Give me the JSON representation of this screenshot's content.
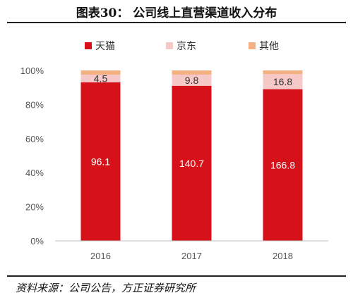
{
  "title": "图表30：   公司线上直营渠道收入分布",
  "source": "资料来源：公司公告，方正证券研究所",
  "chart_data": {
    "type": "bar",
    "stacked": true,
    "normalized": true,
    "categories": [
      "2016",
      "2017",
      "2018"
    ],
    "series": [
      {
        "name": "天猫",
        "color": "#d7111a",
        "values": [
          96.1,
          140.7,
          166.8
        ],
        "share": [
          0.93,
          0.91,
          0.89
        ],
        "labels": [
          "96.1",
          "140.7",
          "166.8"
        ],
        "label_color": "#ffffff"
      },
      {
        "name": "京东",
        "color": "#f7c8c8",
        "values": [
          4.5,
          9.8,
          16.8
        ],
        "share": [
          0.045,
          0.065,
          0.088
        ],
        "labels": [
          "4.5",
          "9.8",
          "16.8"
        ],
        "label_color": "#333333"
      },
      {
        "name": "其他",
        "color": "#f4b183",
        "values": [
          null,
          null,
          null
        ],
        "share": [
          0.025,
          0.025,
          0.022
        ],
        "labels": [
          "",
          "",
          ""
        ],
        "label_color": "#333333"
      }
    ],
    "yticks": [
      "0%",
      "20%",
      "40%",
      "60%",
      "80%",
      "100%"
    ],
    "ylim": [
      0,
      1
    ],
    "legend_position": "top",
    "grid": false
  }
}
